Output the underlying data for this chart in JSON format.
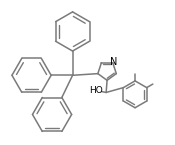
{
  "bg_color": "#ffffff",
  "line_color": "#7a7a7a",
  "text_color": "#000000",
  "lw": 1.1,
  "fontsize": 6.5
}
